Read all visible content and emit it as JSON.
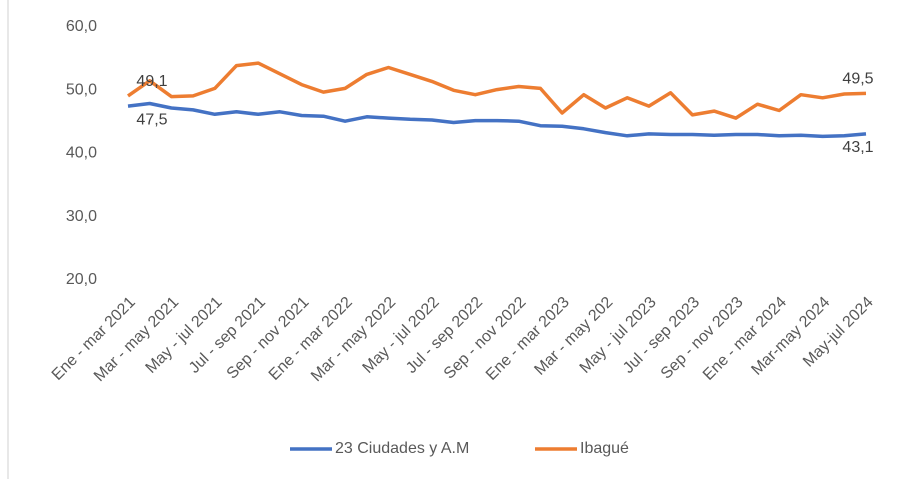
{
  "chart_data": {
    "type": "line",
    "categories": [
      "Ene - mar 2021",
      null,
      "Mar - may 2021",
      null,
      "May - jul 2021",
      null,
      "Jul - sep 2021",
      null,
      "Sep - nov 2021",
      null,
      "Ene - mar 2022",
      null,
      "Mar - may 2022",
      null,
      "May - jul 2022",
      null,
      "Jul - sep 2022",
      null,
      "Sep - nov 2022",
      null,
      "Ene - mar 2023",
      null,
      "Mar - may 202",
      null,
      "May - jul 2023",
      null,
      "Jul - sep 2023",
      null,
      "Sep - nov 2023",
      null,
      "Ene - mar 2024",
      null,
      "Mar-may 2024",
      null,
      "May-jul 2024"
    ],
    "series": [
      {
        "name": "23 Ciudades y A.M",
        "color": "#4472c4",
        "values": [
          47.5,
          47.9,
          47.2,
          46.9,
          46.2,
          46.6,
          46.2,
          46.6,
          46.0,
          45.9,
          45.1,
          45.8,
          45.6,
          45.4,
          45.3,
          44.9,
          45.2,
          45.2,
          45.1,
          44.4,
          44.3,
          43.9,
          43.3,
          42.8,
          43.1,
          43.0,
          43.0,
          42.9,
          43.0,
          43.0,
          42.8,
          42.9,
          42.7,
          42.8,
          43.1
        ],
        "value_labels": [
          "47,5",
          null,
          null,
          null,
          null,
          null,
          null,
          null,
          null,
          null,
          null,
          null,
          null,
          null,
          null,
          null,
          null,
          null,
          null,
          null,
          null,
          null,
          null,
          null,
          null,
          null,
          null,
          null,
          null,
          null,
          null,
          null,
          null,
          null,
          "43,1"
        ]
      },
      {
        "name": "Ibagué",
        "color": "#ed7d31",
        "values": [
          49.1,
          51.5,
          49.0,
          49.1,
          50.3,
          53.9,
          54.3,
          52.6,
          50.9,
          49.7,
          50.3,
          52.5,
          53.6,
          52.5,
          51.4,
          50.0,
          49.3,
          50.1,
          50.6,
          50.3,
          46.4,
          49.3,
          47.2,
          48.8,
          47.5,
          49.6,
          46.1,
          46.7,
          45.6,
          47.8,
          46.8,
          49.3,
          48.8,
          49.4,
          49.5
        ],
        "value_labels": [
          "49,1",
          null,
          null,
          null,
          null,
          null,
          null,
          null,
          null,
          null,
          null,
          null,
          null,
          null,
          null,
          null,
          null,
          null,
          null,
          null,
          null,
          null,
          null,
          null,
          null,
          null,
          null,
          null,
          null,
          null,
          null,
          null,
          null,
          null,
          "49,5"
        ]
      }
    ],
    "ylim": [
      20,
      60
    ],
    "yticks": [
      {
        "value": 20,
        "label": "20,0"
      },
      {
        "value": 30,
        "label": "30,0"
      },
      {
        "value": 40,
        "label": "40,0"
      },
      {
        "value": 50,
        "label": "50,0"
      },
      {
        "value": 60,
        "label": "60,0"
      }
    ],
    "grid": false,
    "legend": "bottom"
  }
}
